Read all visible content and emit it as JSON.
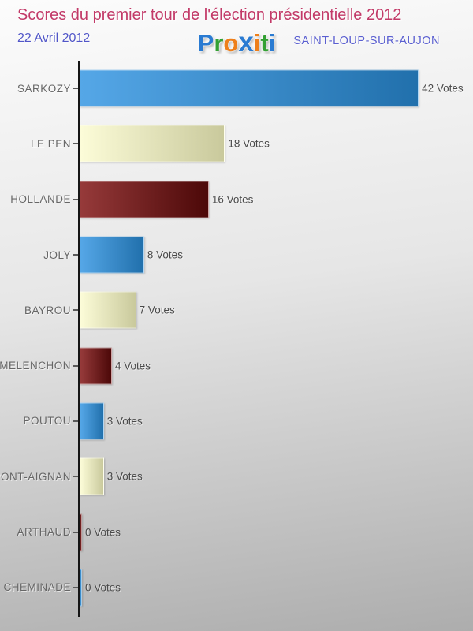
{
  "header": {
    "title": "Scores du premier tour de l'élection présidentielle 2012",
    "date": "22 Avril 2012",
    "city": "SAINT-LOUP-SUR-AUJON"
  },
  "logo": {
    "text": "Proxiti",
    "letters": [
      {
        "ch": "P",
        "color": "#2a7bd2",
        "bold": false
      },
      {
        "ch": "r",
        "color": "#33a033",
        "bold": false
      },
      {
        "ch": "o",
        "color": "#ee7f1a",
        "bold": false
      },
      {
        "ch": "x",
        "color": "#2a7bd2",
        "bold": true
      },
      {
        "ch": "i",
        "color": "#ee7f1a",
        "bold": false
      },
      {
        "ch": "t",
        "color": "#33a033",
        "bold": false
      },
      {
        "ch": "i",
        "color": "#2a7bd2",
        "bold": false
      }
    ]
  },
  "chart_data": {
    "type": "bar",
    "orientation": "horizontal",
    "title": "Scores du premier tour de l'élection présidentielle 2012",
    "subtitle": "22 Avril 2012",
    "location": "SAINT-LOUP-SUR-AUJON",
    "categories": [
      "SARKOZY",
      "LE PEN",
      "HOLLANDE",
      "JOLY",
      "BAYROU",
      "MELENCHON",
      "POUTOU",
      "DUPONT-AIGNAN",
      "ARTHAUD",
      "CHEMINADE"
    ],
    "values": [
      42,
      18,
      16,
      8,
      7,
      4,
      3,
      3,
      0,
      0
    ],
    "value_labels": [
      "42 Votes",
      "18 Votes",
      "16 Votes",
      "8 Votes",
      "7 Votes",
      "4 Votes",
      "3 Votes",
      "3 Votes",
      "0 Votes",
      "0 Votes"
    ],
    "unit": "Votes",
    "xlim": [
      0,
      42
    ],
    "grid": false,
    "legend": false,
    "bar_theme_cycle": [
      "blue",
      "cream",
      "darkred"
    ],
    "theme_colors": {
      "blue": {
        "from": "#55a7e7",
        "to": "#2170ac"
      },
      "cream": {
        "from": "#fcfcd8",
        "to": "#c9c99c"
      },
      "darkred": {
        "from": "#963a3a",
        "to": "#4c0808"
      }
    },
    "axis_color": "#151515",
    "label_color": "#666666",
    "value_color": "#4a4a4a"
  },
  "style_colors": {
    "title": "#c23a68",
    "date": "#5156c8",
    "city": "#5a5fd0",
    "background_top": "#fcfcfc",
    "background_bottom": "#adadad"
  }
}
